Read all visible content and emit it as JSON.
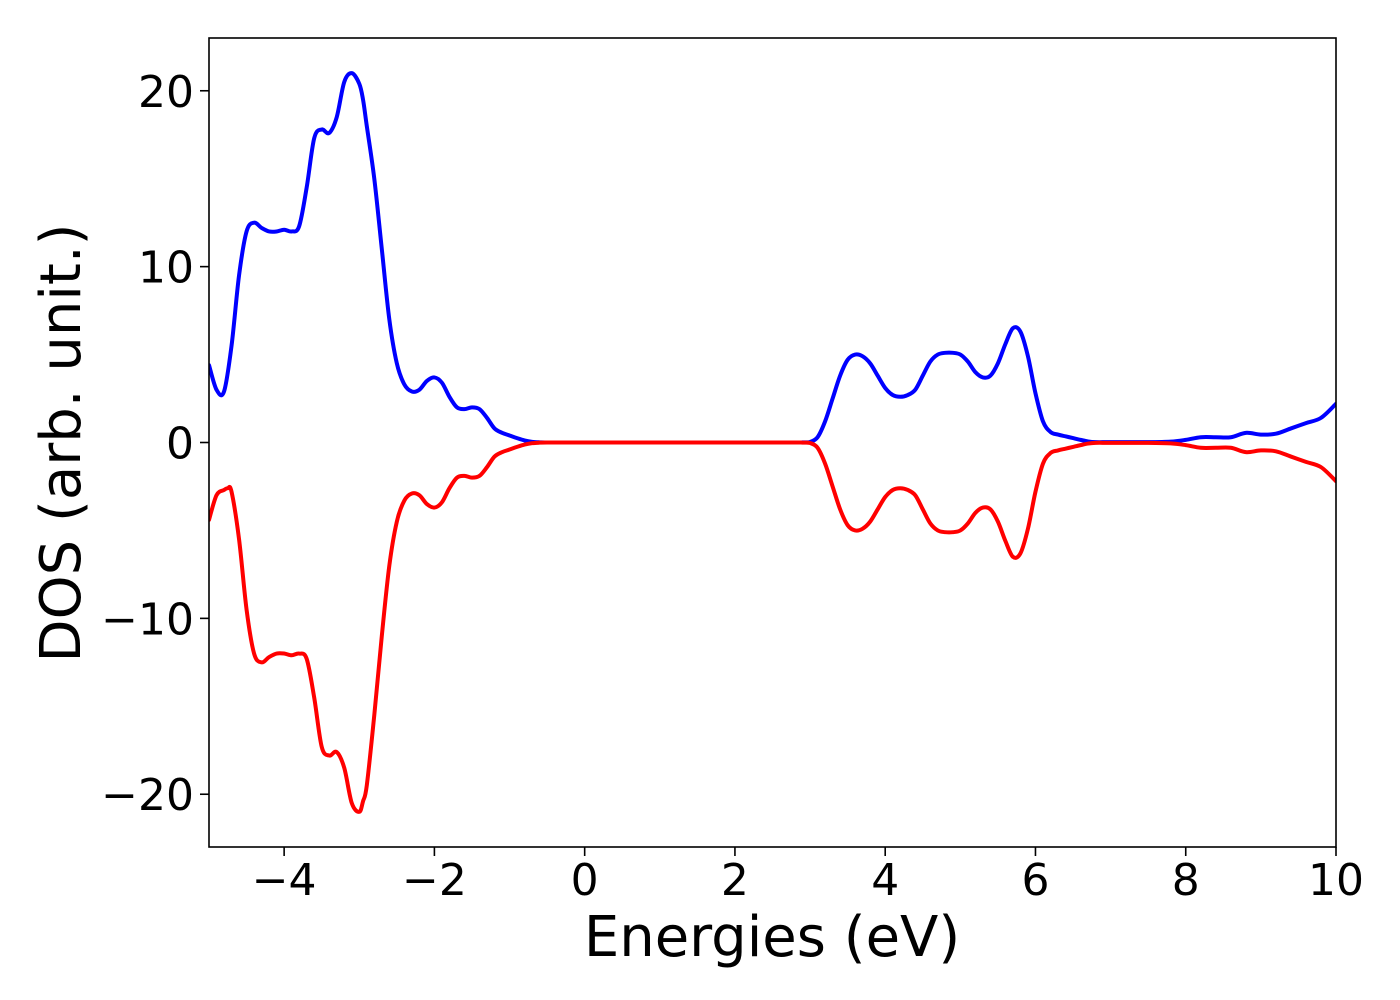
{
  "chart_data": {
    "type": "line",
    "title": "",
    "xlabel": "Energies (eV)",
    "ylabel": "DOS (arb. unit.)",
    "xlim": [
      -5,
      10
    ],
    "ylim": [
      -23,
      23
    ],
    "xticks": [
      -4,
      -2,
      0,
      2,
      4,
      6,
      8,
      10
    ],
    "yticks": [
      -20,
      -10,
      0,
      10,
      20
    ],
    "xtick_labels": [
      "−4",
      "−2",
      "0",
      "2",
      "4",
      "6",
      "8",
      "10"
    ],
    "ytick_labels": [
      "−20",
      "−10",
      "0",
      "10",
      "20"
    ],
    "grid": false,
    "legend": false,
    "series": [
      {
        "color": "#0000ff",
        "x": [
          -5.0,
          -4.9,
          -4.8,
          -4.7,
          -4.6,
          -4.5,
          -4.4,
          -4.3,
          -4.2,
          -4.1,
          -4.0,
          -3.9,
          -3.8,
          -3.7,
          -3.6,
          -3.5,
          -3.4,
          -3.3,
          -3.2,
          -3.1,
          -3.0,
          -2.95,
          -2.9,
          -2.8,
          -2.7,
          -2.6,
          -2.5,
          -2.4,
          -2.3,
          -2.2,
          -2.1,
          -2.0,
          -1.9,
          -1.8,
          -1.7,
          -1.6,
          -1.5,
          -1.4,
          -1.3,
          -1.2,
          -1.1,
          -1.0,
          -0.9,
          -0.8,
          -0.7,
          -0.6,
          -0.5,
          0.0,
          1.0,
          2.0,
          2.8,
          2.9,
          3.0,
          3.1,
          3.2,
          3.3,
          3.4,
          3.5,
          3.6,
          3.7,
          3.8,
          3.9,
          4.0,
          4.1,
          4.2,
          4.3,
          4.4,
          4.5,
          4.6,
          4.7,
          4.8,
          4.9,
          5.0,
          5.1,
          5.2,
          5.3,
          5.4,
          5.5,
          5.6,
          5.7,
          5.8,
          5.9,
          6.0,
          6.1,
          6.2,
          6.3,
          6.4,
          6.5,
          6.6,
          6.7,
          6.8,
          7.0,
          7.5,
          7.8,
          8.0,
          8.2,
          8.4,
          8.6,
          8.8,
          9.0,
          9.2,
          9.4,
          9.6,
          9.8,
          10.0
        ],
        "y": [
          4.4,
          3.0,
          2.9,
          5.5,
          9.5,
          12.0,
          12.5,
          12.2,
          12.0,
          12.0,
          12.1,
          12.0,
          12.3,
          14.5,
          17.3,
          17.8,
          17.6,
          18.5,
          20.5,
          21.0,
          20.4,
          19.5,
          18.0,
          15.0,
          11.0,
          7.0,
          4.5,
          3.3,
          2.9,
          3.0,
          3.5,
          3.7,
          3.4,
          2.6,
          2.0,
          1.9,
          2.0,
          1.9,
          1.4,
          0.8,
          0.55,
          0.4,
          0.25,
          0.12,
          0.04,
          0.01,
          0.0,
          0.0,
          0.0,
          0.0,
          0.0,
          0.01,
          0.03,
          0.3,
          1.2,
          2.5,
          3.8,
          4.7,
          5.0,
          4.9,
          4.5,
          3.8,
          3.1,
          2.7,
          2.6,
          2.7,
          3.0,
          3.8,
          4.6,
          5.0,
          5.1,
          5.1,
          5.0,
          4.6,
          4.0,
          3.7,
          3.8,
          4.5,
          5.6,
          6.5,
          6.3,
          4.9,
          2.8,
          1.2,
          0.6,
          0.45,
          0.35,
          0.25,
          0.15,
          0.06,
          0.02,
          0.02,
          0.02,
          0.05,
          0.15,
          0.3,
          0.3,
          0.3,
          0.55,
          0.45,
          0.5,
          0.8,
          1.1,
          1.4,
          2.2
        ]
      },
      {
        "color": "#ff0000",
        "x": [
          -5.0,
          -4.9,
          -4.8,
          -4.75,
          -4.7,
          -4.6,
          -4.5,
          -4.4,
          -4.3,
          -4.2,
          -4.1,
          -4.0,
          -3.9,
          -3.8,
          -3.7,
          -3.6,
          -3.5,
          -3.4,
          -3.3,
          -3.2,
          -3.1,
          -3.0,
          -2.95,
          -2.9,
          -2.8,
          -2.7,
          -2.6,
          -2.5,
          -2.4,
          -2.3,
          -2.2,
          -2.1,
          -2.0,
          -1.9,
          -1.8,
          -1.7,
          -1.6,
          -1.5,
          -1.4,
          -1.3,
          -1.2,
          -1.1,
          -1.0,
          -0.9,
          -0.8,
          -0.7,
          -0.6,
          -0.5,
          0.0,
          1.0,
          2.0,
          2.8,
          2.9,
          3.0,
          3.1,
          3.2,
          3.3,
          3.4,
          3.5,
          3.6,
          3.7,
          3.8,
          3.9,
          4.0,
          4.1,
          4.2,
          4.3,
          4.4,
          4.5,
          4.6,
          4.7,
          4.8,
          4.9,
          5.0,
          5.1,
          5.2,
          5.3,
          5.4,
          5.5,
          5.6,
          5.7,
          5.8,
          5.9,
          6.0,
          6.1,
          6.2,
          6.3,
          6.4,
          6.5,
          6.6,
          6.7,
          6.8,
          7.0,
          7.5,
          7.8,
          8.0,
          8.2,
          8.4,
          8.6,
          8.8,
          9.0,
          9.2,
          9.4,
          9.6,
          9.8,
          10.0
        ],
        "y": [
          -4.4,
          -3.0,
          -2.7,
          -2.6,
          -2.8,
          -5.5,
          -9.5,
          -12.0,
          -12.5,
          -12.2,
          -12.0,
          -12.0,
          -12.1,
          -12.0,
          -12.3,
          -14.5,
          -17.3,
          -17.8,
          -17.6,
          -18.5,
          -20.5,
          -21.0,
          -20.4,
          -19.5,
          -15.5,
          -11.0,
          -7.0,
          -4.5,
          -3.3,
          -2.9,
          -3.0,
          -3.5,
          -3.7,
          -3.4,
          -2.6,
          -2.0,
          -1.9,
          -2.0,
          -1.9,
          -1.4,
          -0.8,
          -0.55,
          -0.4,
          -0.25,
          -0.12,
          -0.04,
          -0.01,
          0.0,
          0.0,
          0.0,
          0.0,
          0.0,
          -0.01,
          -0.03,
          -0.3,
          -1.2,
          -2.5,
          -3.8,
          -4.7,
          -5.0,
          -4.9,
          -4.5,
          -3.8,
          -3.1,
          -2.7,
          -2.6,
          -2.7,
          -3.0,
          -3.8,
          -4.6,
          -5.0,
          -5.1,
          -5.1,
          -5.0,
          -4.6,
          -4.0,
          -3.7,
          -3.8,
          -4.5,
          -5.6,
          -6.5,
          -6.3,
          -4.9,
          -2.8,
          -1.2,
          -0.6,
          -0.45,
          -0.35,
          -0.25,
          -0.15,
          -0.06,
          -0.02,
          -0.02,
          -0.02,
          -0.05,
          -0.15,
          -0.3,
          -0.3,
          -0.3,
          -0.55,
          -0.45,
          -0.5,
          -0.8,
          -1.1,
          -1.4,
          -2.2
        ]
      }
    ]
  }
}
